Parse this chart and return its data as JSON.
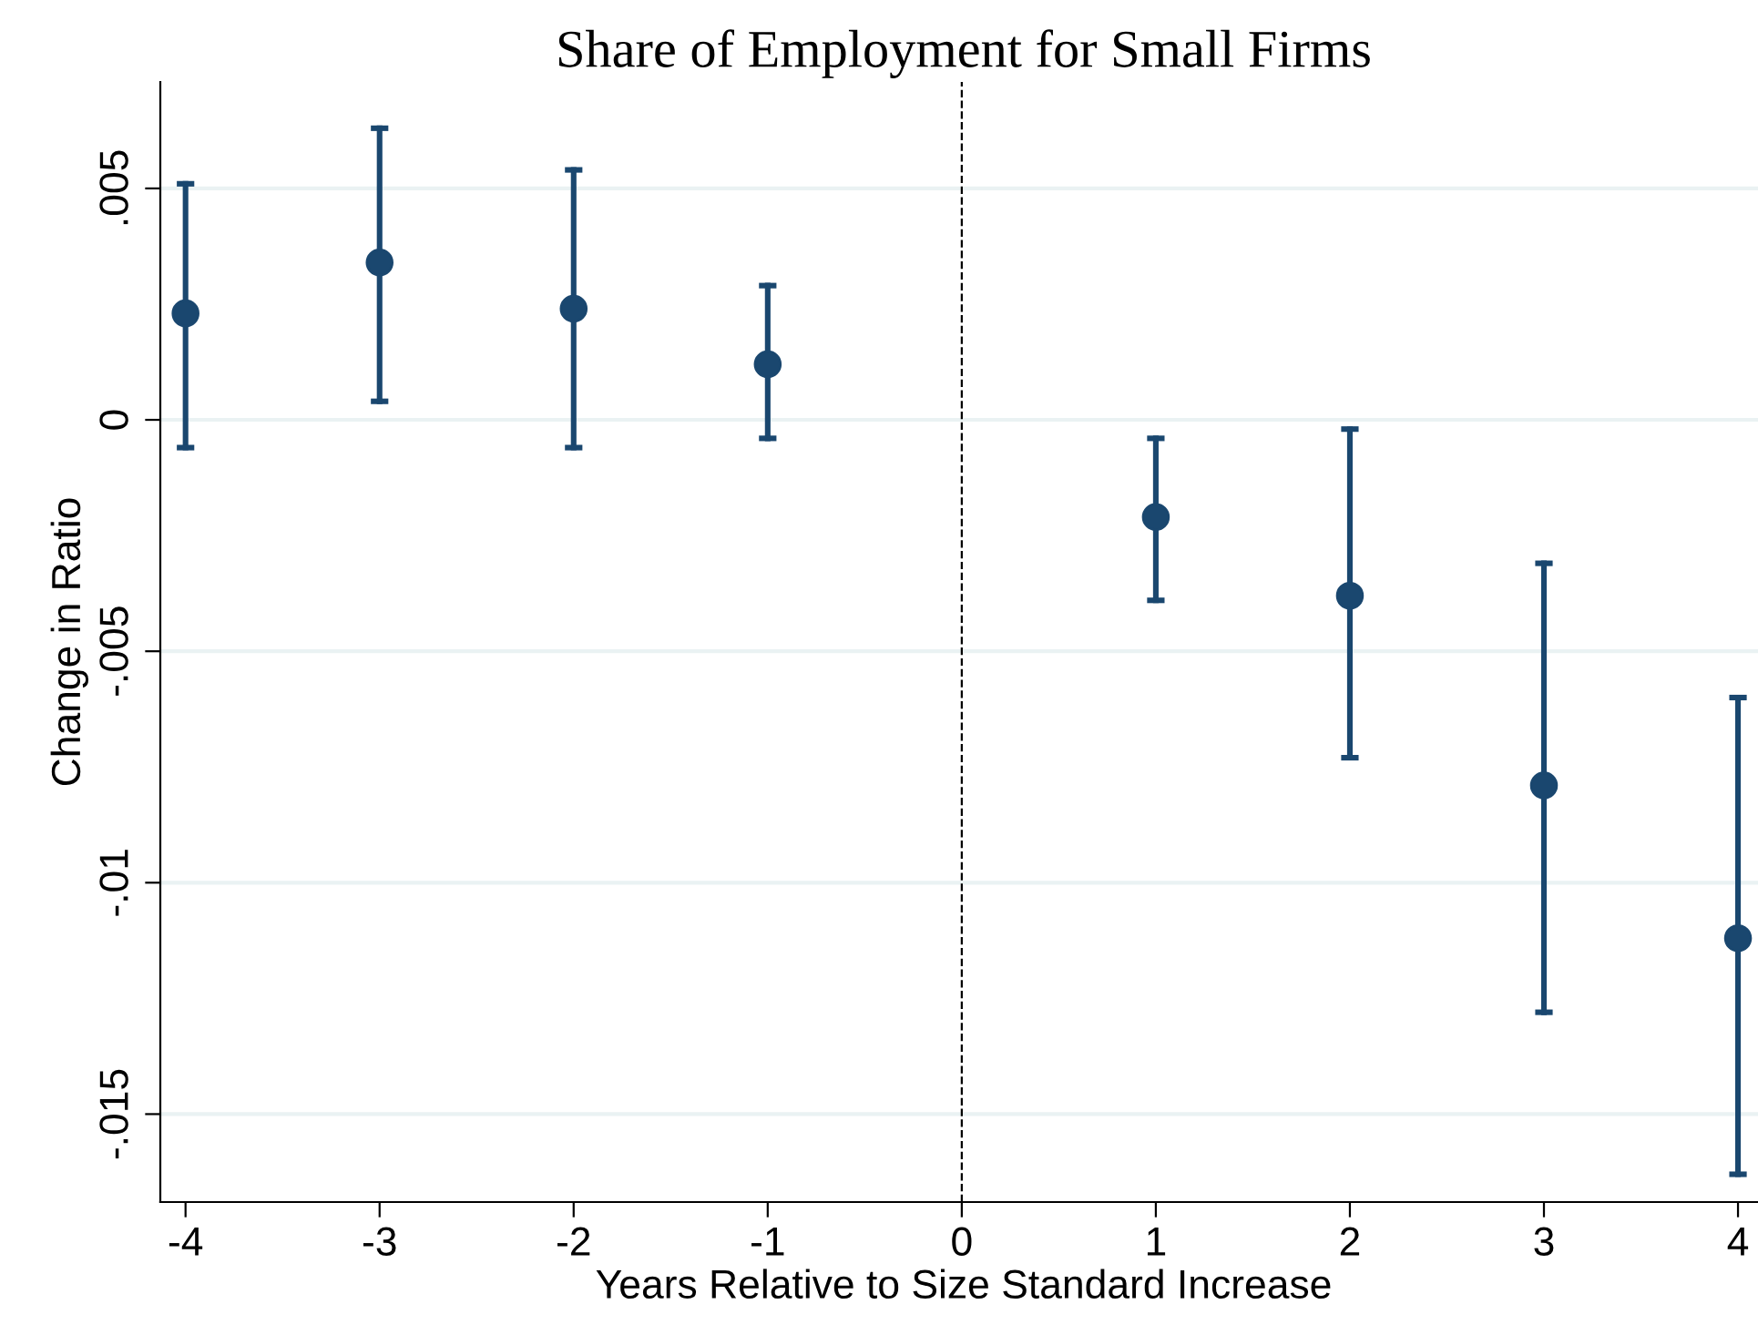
{
  "chart_data": {
    "type": "scatter",
    "title": "Share of Employment for Small Firms",
    "xlabel": "Years Relative to Size Standard Increase",
    "ylabel": "Change in Ratio",
    "x": [
      -4,
      -3,
      -2,
      -1,
      1,
      2,
      3,
      4
    ],
    "series": [
      {
        "color": "#1a476f",
        "values": [
          0.0023,
          0.0034,
          0.0024,
          0.0012,
          -0.0021,
          -0.0038,
          -0.0079,
          -0.0112
        ],
        "errors": [
          [
            -0.0006,
            0.0051
          ],
          [
            0.0004,
            0.0063
          ],
          [
            -0.0006,
            0.0054
          ],
          [
            -0.0004,
            0.0029
          ],
          [
            -0.0039,
            -0.0004
          ],
          [
            -0.0073,
            -0.0002
          ],
          [
            -0.0128,
            -0.0031
          ],
          [
            -0.0163,
            -0.006
          ]
        ]
      }
    ],
    "marker": "circle",
    "xlim": [
      -4.13,
      4.15
    ],
    "xticks": [
      -4,
      -3,
      -2,
      -1,
      0,
      1,
      2,
      3,
      4
    ],
    "ylim": [
      -0.0169,
      0.0073
    ],
    "yticks": [
      {
        "value": -0.015,
        "label": "-.015"
      },
      {
        "value": -0.01,
        "label": "-.01"
      },
      {
        "value": -0.005,
        "label": "-.005"
      },
      {
        "value": 0,
        "label": "0"
      },
      {
        "value": 0.005,
        "label": ".005"
      }
    ],
    "grid": "y",
    "ref_lines": [
      {
        "axis": "x",
        "value": 0,
        "label": null,
        "color": "#000000",
        "line_style": "dashed"
      }
    ]
  }
}
